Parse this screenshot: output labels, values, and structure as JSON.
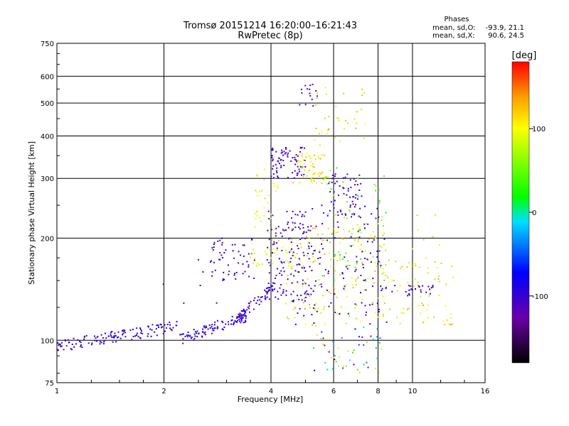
{
  "chart_data": {
    "type": "scatter",
    "title": "Tromsø 20151214 16:20:00–16:21:43",
    "subtitle": "RwPretec (8p)",
    "xlabel": "Frequency [MHz]",
    "ylabel": "Stationary phase Virtual Height [km]",
    "x_scale": "log",
    "y_scale": "log",
    "xlim": [
      1,
      16
    ],
    "ylim": [
      75,
      750
    ],
    "x_ticks": [
      1,
      2,
      4,
      6,
      8,
      10,
      16
    ],
    "y_ticks": [
      75,
      100,
      200,
      300,
      400,
      500,
      600,
      750
    ],
    "x_tick_labels": [
      "1",
      "2",
      "4",
      "6",
      "8",
      "10",
      "16"
    ],
    "y_tick_labels": [
      "75",
      "100",
      "200",
      "300",
      "400",
      "500",
      "600",
      "750"
    ],
    "grid": true,
    "stats": {
      "heading": "Phases",
      "o_label": "mean, sd,O:",
      "o_values": "-93.9, 21.1",
      "x_label": "mean, sd,X:",
      "x_values": "90.6, 24.5"
    },
    "colorbar": {
      "label": "[deg]",
      "range": [
        -180,
        180
      ],
      "ticks": [
        100,
        0,
        -100
      ],
      "tick_labels": [
        "100",
        "0",
        "-100"
      ],
      "colors": [
        "#000000",
        "#6a00a8",
        "#0000ff",
        "#00e0ff",
        "#00ff00",
        "#ffff00",
        "#ffa000",
        "#ff0000"
      ]
    },
    "groups": [
      {
        "x": [
          1.0,
          2.2
        ],
        "y": [
          96,
          110
        ],
        "phase": [
          -110,
          -85
        ],
        "n": 130,
        "trend": "ramp"
      },
      {
        "x": [
          2.2,
          3.4
        ],
        "y": [
          100,
          118
        ],
        "phase": [
          -115,
          -80
        ],
        "n": 95,
        "trend": "ramp"
      },
      {
        "x": [
          3.2,
          4.1
        ],
        "y": [
          115,
          145
        ],
        "phase": [
          -120,
          -80
        ],
        "n": 70,
        "trend": "ramp"
      },
      {
        "x": [
          2.7,
          3.6
        ],
        "y": [
          150,
          200
        ],
        "phase": [
          -120,
          -80
        ],
        "n": 55
      },
      {
        "x": [
          3.5,
          4.5
        ],
        "y": [
          165,
          200
        ],
        "phase": [
          80,
          120
        ],
        "n": 30
      },
      {
        "x": [
          3.6,
          4.2
        ],
        "y": [
          200,
          320
        ],
        "phase": [
          80,
          120
        ],
        "n": 35
      },
      {
        "x": [
          3.9,
          5.2
        ],
        "y": [
          130,
          240
        ],
        "phase": [
          -120,
          -85
        ],
        "n": 120
      },
      {
        "x": [
          4.0,
          5.0
        ],
        "y": [
          300,
          370
        ],
        "phase": [
          -120,
          -90
        ],
        "n": 75
      },
      {
        "x": [
          4.6,
          5.8
        ],
        "y": [
          290,
          360
        ],
        "phase": [
          80,
          130
        ],
        "n": 60
      },
      {
        "x": [
          4.8,
          5.4
        ],
        "y": [
          470,
          570
        ],
        "phase": [
          -120,
          -90
        ],
        "n": 15
      },
      {
        "x": [
          5.3,
          7.5
        ],
        "y": [
          370,
          560
        ],
        "phase": [
          60,
          140
        ],
        "n": 35
      },
      {
        "x": [
          5.8,
          7.2
        ],
        "y": [
          230,
          310
        ],
        "phase": [
          -115,
          -85
        ],
        "n": 60
      },
      {
        "x": [
          4.4,
          8.5
        ],
        "y": [
          110,
          220
        ],
        "phase": [
          60,
          140
        ],
        "n": 170
      },
      {
        "x": [
          4.5,
          8.5
        ],
        "y": [
          110,
          250
        ],
        "phase": [
          -120,
          -80
        ],
        "n": 140
      },
      {
        "x": [
          5.5,
          8.5
        ],
        "y": [
          150,
          330
        ],
        "phase": [
          20,
          80
        ],
        "n": 55
      },
      {
        "x": [
          5.2,
          8.2
        ],
        "y": [
          80,
          110
        ],
        "phase": [
          -120,
          130
        ],
        "n": 55
      },
      {
        "x": [
          8.5,
          13.0
        ],
        "y": [
          110,
          175
        ],
        "phase": [
          60,
          140
        ],
        "n": 60
      },
      {
        "x": [
          8.5,
          11.5
        ],
        "y": [
          135,
          145
        ],
        "phase": [
          -115,
          -90
        ],
        "n": 25
      },
      {
        "x": [
          9.0,
          12.5
        ],
        "y": [
          160,
          250
        ],
        "phase": [
          80,
          130
        ],
        "n": 15
      },
      {
        "x": [
          1.6,
          3.0
        ],
        "y": [
          128,
          210
        ],
        "phase": [
          -120,
          -90
        ],
        "n": 8
      }
    ]
  }
}
